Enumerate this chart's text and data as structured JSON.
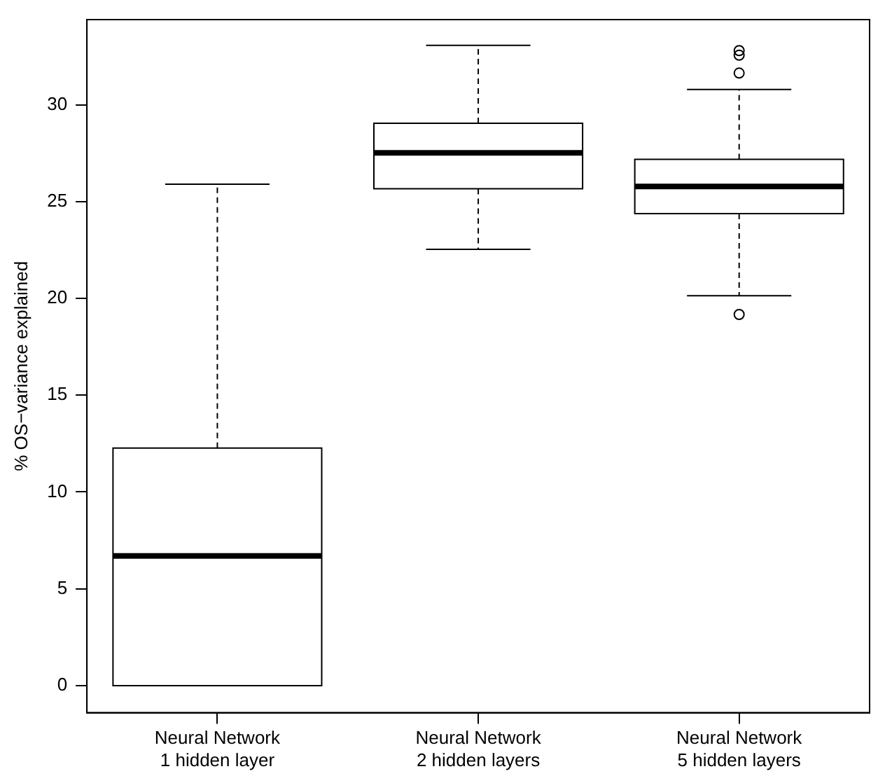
{
  "chart_data": {
    "type": "box",
    "ylabel": "% OS−variance explained",
    "categories": [
      "Neural Network\n1 hidden layer",
      "Neural Network\n2 hidden layers",
      "Neural Network\n5 hidden layers"
    ],
    "color": "#000000",
    "boxes": [
      {
        "low": 0,
        "q1": 0,
        "median": 6.7,
        "q3": 12.27,
        "high": 25.9
      },
      {
        "low": 22.53,
        "q1": 25.66,
        "median": 27.52,
        "q3": 29.05,
        "high": 33.07
      },
      {
        "low": 20.14,
        "q1": 24.38,
        "median": 25.78,
        "q3": 27.18,
        "high": 30.79,
        "outliers": [
          19.17,
          31.64,
          32.56,
          32.8
        ]
      }
    ],
    "ylim": [
      -1.4,
      34.4
    ],
    "yticks": [
      0,
      5,
      10,
      15,
      20,
      25,
      30
    ],
    "grid": false
  }
}
